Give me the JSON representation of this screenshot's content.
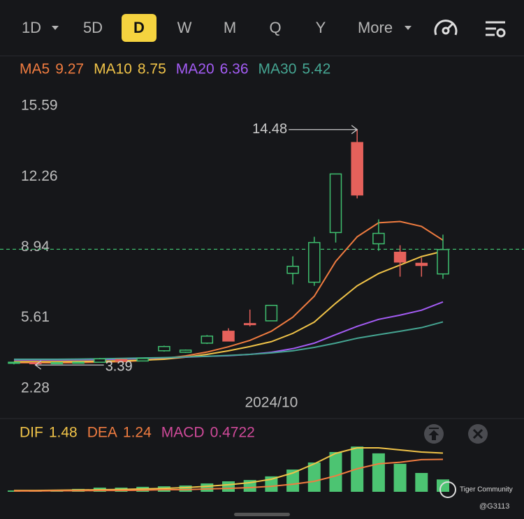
{
  "tabs": [
    {
      "label": "1D"
    },
    {
      "label": "5D"
    },
    {
      "label": "D",
      "active": true
    },
    {
      "label": "W"
    },
    {
      "label": "M"
    },
    {
      "label": "Q"
    },
    {
      "label": "Y"
    },
    {
      "label": "More"
    }
  ],
  "watermark": "Tiger Community",
  "user": "@G3113",
  "chart_data": [
    {
      "type": "candlestick",
      "categories": [
        null,
        null,
        null,
        null,
        null,
        null,
        null,
        null,
        null,
        null,
        null,
        null,
        "2024/10",
        null,
        null,
        null,
        null,
        null,
        null,
        null,
        null
      ],
      "open": [
        3.48,
        3.5,
        3.46,
        3.5,
        3.52,
        3.65,
        3.58,
        4.06,
        3.99,
        4.42,
        4.98,
        5.34,
        5.47,
        7.71,
        7.29,
        9.63,
        13.87,
        9.1,
        8.7,
        8.18,
        7.68
      ],
      "high": [
        3.55,
        3.52,
        3.52,
        3.55,
        3.72,
        3.68,
        3.72,
        4.3,
        4.12,
        4.8,
        5.12,
        6.0,
        6.2,
        8.51,
        9.43,
        12.39,
        14.48,
        10.25,
        9.03,
        8.45,
        9.53
      ],
      "low": [
        3.42,
        3.39,
        3.44,
        3.46,
        3.5,
        3.55,
        3.56,
        4.02,
        3.96,
        4.38,
        4.5,
        5.21,
        5.47,
        7.19,
        7.12,
        9.16,
        11.24,
        8.77,
        7.55,
        7.55,
        7.45
      ],
      "close": [
        3.52,
        3.45,
        3.5,
        3.52,
        3.68,
        3.58,
        3.7,
        4.26,
        4.09,
        4.75,
        4.52,
        5.3,
        6.2,
        8.04,
        9.16,
        12.39,
        11.4,
        9.59,
        8.24,
        8.08,
        8.83
      ],
      "up_color": "#3fbf6f",
      "down_color": "#e5615b",
      "series": [
        {
          "name": "MA5",
          "color": "#f07c40",
          "values": [
            3.5,
            3.5,
            3.49,
            3.5,
            3.53,
            3.55,
            3.6,
            3.7,
            3.82,
            4.0,
            4.25,
            4.55,
            4.98,
            5.64,
            6.63,
            8.27,
            9.43,
            10.09,
            10.15,
            9.92,
            9.27
          ]
        },
        {
          "name": "MA10",
          "color": "#f0c348",
          "values": [
            3.55,
            3.55,
            3.55,
            3.56,
            3.57,
            3.59,
            3.62,
            3.66,
            3.76,
            3.89,
            4.06,
            4.26,
            4.49,
            4.88,
            5.41,
            6.3,
            7.12,
            7.7,
            8.1,
            8.5,
            8.75
          ]
        },
        {
          "name": "MA20",
          "color": "#a45cf5",
          "values": [
            3.63,
            3.63,
            3.63,
            3.64,
            3.65,
            3.67,
            3.7,
            3.73,
            3.76,
            3.8,
            3.83,
            3.89,
            3.99,
            4.16,
            4.42,
            4.82,
            5.21,
            5.54,
            5.74,
            5.97,
            6.36
          ]
        },
        {
          "name": "MA30",
          "color": "#45a592",
          "values": [
            3.66,
            3.66,
            3.66,
            3.67,
            3.68,
            3.7,
            3.72,
            3.74,
            3.77,
            3.8,
            3.84,
            3.89,
            3.96,
            4.06,
            4.22,
            4.42,
            4.65,
            4.82,
            4.98,
            5.15,
            5.42
          ]
        }
      ],
      "last_price": 8.84,
      "ylim": [
        2.28,
        15.59
      ],
      "yticks": [
        15.59,
        12.26,
        8.94,
        5.61,
        2.28
      ]
    },
    {
      "type": "macd",
      "ylim": [
        -0.08,
        2.0
      ],
      "series": [
        {
          "name": "DIF",
          "kind": "line",
          "color": "#f0c348",
          "values": [
            0.05,
            0.05,
            0.06,
            0.07,
            0.08,
            0.09,
            0.11,
            0.13,
            0.16,
            0.21,
            0.27,
            0.35,
            0.48,
            0.72,
            1.07,
            1.47,
            1.68,
            1.68,
            1.6,
            1.52,
            1.48
          ]
        },
        {
          "name": "DEA",
          "kind": "line",
          "color": "#f07c40",
          "values": [
            0.03,
            0.03,
            0.04,
            0.04,
            0.05,
            0.05,
            0.06,
            0.08,
            0.08,
            0.11,
            0.13,
            0.16,
            0.21,
            0.29,
            0.4,
            0.61,
            0.88,
            1.07,
            1.13,
            1.23,
            1.24
          ]
        },
        {
          "name": "MACD",
          "kind": "bar",
          "color": "#d04a9a",
          "bar_color": "#4cc472",
          "values": [
            0.05,
            0.05,
            0.08,
            0.11,
            0.16,
            0.16,
            0.19,
            0.21,
            0.24,
            0.32,
            0.4,
            0.45,
            0.59,
            0.85,
            1.12,
            1.52,
            1.73,
            1.47,
            1.07,
            0.72,
            0.4722
          ]
        }
      ]
    }
  ]
}
